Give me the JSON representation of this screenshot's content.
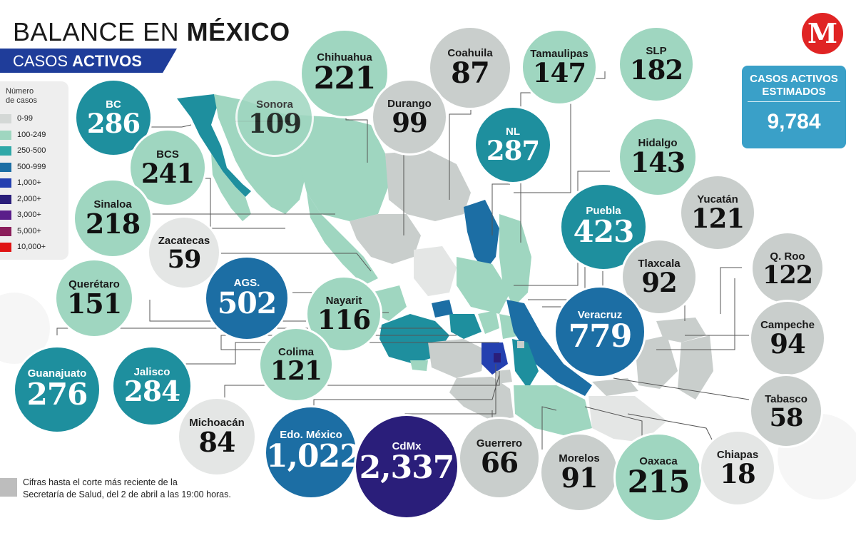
{
  "header": {
    "title_part1": "BALANCE EN ",
    "title_part2": "MÉXICO",
    "subtitle_part1": "CASOS ",
    "subtitle_part2": "ACTIVOS",
    "logo_letter": "M"
  },
  "legend": {
    "title_line1": "Número",
    "title_line2": "de casos",
    "items": [
      {
        "label": "0-99",
        "color": "#d4d8d6"
      },
      {
        "label": "100-249",
        "color": "#9fd6c0"
      },
      {
        "label": "250-500",
        "color": "#2fa8a8"
      },
      {
        "label": "500-999",
        "color": "#1c6ea4"
      },
      {
        "label": "1,000+",
        "color": "#2440b0"
      },
      {
        "label": "2,000+",
        "color": "#2a1e7a"
      },
      {
        "label": "3,000+",
        "color": "#5a1e8a"
      },
      {
        "label": "5,000+",
        "color": "#8a1e5a"
      },
      {
        "label": "10,000+",
        "color": "#e01414"
      }
    ]
  },
  "estimated": {
    "title_line1": "CASOS ACTIVOS",
    "title_line2": "ESTIMADOS",
    "value": "9,784"
  },
  "footnote": {
    "line1": "Cifras hasta el corte más reciente de la",
    "line2": "Secretaría de Salud, del 2 de abril a las 19:00 horas."
  },
  "states": [
    {
      "id": "bc",
      "name": "BC",
      "value": "286",
      "color": "#1e8f9e",
      "dark": true
    },
    {
      "id": "sonora",
      "name": "Sonora",
      "value": "109",
      "color": "#9fd6c0",
      "dark": false
    },
    {
      "id": "chihuahua",
      "name": "Chihuahua",
      "value": "221",
      "color": "#9fd6c0",
      "dark": false
    },
    {
      "id": "coahuila",
      "name": "Coahuila",
      "value": "87",
      "color": "#c9cecc",
      "dark": false
    },
    {
      "id": "tamaulipas",
      "name": "Tamaulipas",
      "value": "147",
      "color": "#9fd6c0",
      "dark": false
    },
    {
      "id": "slp",
      "name": "SLP",
      "value": "182",
      "color": "#9fd6c0",
      "dark": false
    },
    {
      "id": "durango",
      "name": "Durango",
      "value": "99",
      "color": "#c9cecc",
      "dark": false
    },
    {
      "id": "nl",
      "name": "NL",
      "value": "287",
      "color": "#1e8f9e",
      "dark": true
    },
    {
      "id": "bcs",
      "name": "BCS",
      "value": "241",
      "color": "#9fd6c0",
      "dark": false
    },
    {
      "id": "sinaloa",
      "name": "Sinaloa",
      "value": "218",
      "color": "#9fd6c0",
      "dark": false
    },
    {
      "id": "hidalgo",
      "name": "Hidalgo",
      "value": "143",
      "color": "#9fd6c0",
      "dark": false
    },
    {
      "id": "yucatan",
      "name": "Yucatán",
      "value": "121",
      "color": "#c9cecc",
      "dark": false
    },
    {
      "id": "puebla",
      "name": "Puebla",
      "value": "423",
      "color": "#1e8f9e",
      "dark": true
    },
    {
      "id": "zacatecas",
      "name": "Zacatecas",
      "value": "59",
      "color": "#e4e6e5",
      "dark": false
    },
    {
      "id": "qroo",
      "name": "Q. Roo",
      "value": "122",
      "color": "#c9cecc",
      "dark": false
    },
    {
      "id": "tlaxcala",
      "name": "Tlaxcala",
      "value": "92",
      "color": "#c9cecc",
      "dark": false
    },
    {
      "id": "queretaro",
      "name": "Querétaro",
      "value": "151",
      "color": "#9fd6c0",
      "dark": false
    },
    {
      "id": "ags",
      "name": "AGS.",
      "value": "502",
      "color": "#1c6ea4",
      "dark": true
    },
    {
      "id": "nayarit",
      "name": "Nayarit",
      "value": "116",
      "color": "#9fd6c0",
      "dark": false
    },
    {
      "id": "veracruz",
      "name": "Veracruz",
      "value": "779",
      "color": "#1c6ea4",
      "dark": true
    },
    {
      "id": "campeche",
      "name": "Campeche",
      "value": "94",
      "color": "#c9cecc",
      "dark": false
    },
    {
      "id": "colima",
      "name": "Colima",
      "value": "121",
      "color": "#9fd6c0",
      "dark": false
    },
    {
      "id": "guanajuato",
      "name": "Guanajuato",
      "value": "276",
      "color": "#1e8f9e",
      "dark": true
    },
    {
      "id": "jalisco",
      "name": "Jalisco",
      "value": "284",
      "color": "#1e8f9e",
      "dark": true
    },
    {
      "id": "tabasco",
      "name": "Tabasco",
      "value": "58",
      "color": "#c9cecc",
      "dark": false
    },
    {
      "id": "michoacan",
      "name": "Michoacán",
      "value": "84",
      "color": "#e4e6e5",
      "dark": false
    },
    {
      "id": "edomex",
      "name": "Edo. México",
      "value": "1,022",
      "color": "#1c6ea4",
      "dark": true
    },
    {
      "id": "cdmx",
      "name": "CdMx",
      "value": "2,337",
      "color": "#2a1e7a",
      "dark": true
    },
    {
      "id": "guerrero",
      "name": "Guerrero",
      "value": "66",
      "color": "#c9cecc",
      "dark": false
    },
    {
      "id": "morelos",
      "name": "Morelos",
      "value": "91",
      "color": "#c9cecc",
      "dark": false
    },
    {
      "id": "oaxaca",
      "name": "Oaxaca",
      "value": "215",
      "color": "#9fd6c0",
      "dark": false
    },
    {
      "id": "chiapas",
      "name": "Chiapas",
      "value": "18",
      "color": "#e4e6e5",
      "dark": false
    }
  ]
}
